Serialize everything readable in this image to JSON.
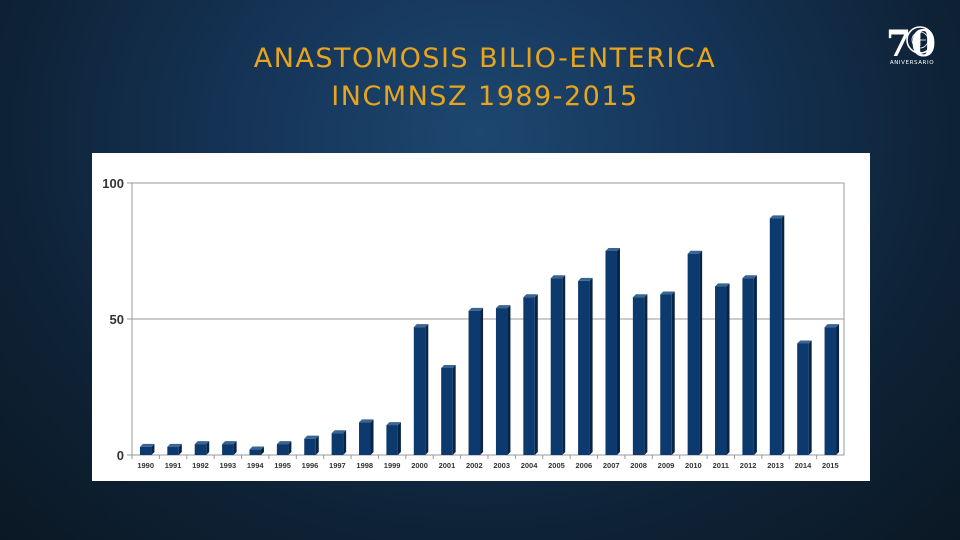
{
  "slide": {
    "title_line1": "ANASTOMOSIS BILIO-ENTERICA",
    "title_line2": "INCMNSZ 1989-2015",
    "title_color": "#e8a51c"
  },
  "logo": {
    "numeral": "70",
    "caption": "ANIVERSARIO",
    "icon": "anniversary-70-logo"
  },
  "colors": {
    "bar_face": "#0d3a6e",
    "bar_side": "#072447",
    "bar_top": "#3a6593",
    "gridline": "#9a9a9a"
  },
  "chart_data": {
    "type": "bar",
    "categories": [
      "1990",
      "1991",
      "1992",
      "1993",
      "1994",
      "1995",
      "1996",
      "1997",
      "1998",
      "1999",
      "2000",
      "2001",
      "2002",
      "2003",
      "2004",
      "2005",
      "2006",
      "2007",
      "2008",
      "2009",
      "2010",
      "2011",
      "2012",
      "2013",
      "2014",
      "2015"
    ],
    "values": [
      3,
      3,
      4,
      4,
      2,
      4,
      6,
      8,
      12,
      11,
      47,
      32,
      53,
      54,
      58,
      65,
      64,
      75,
      58,
      59,
      74,
      62,
      65,
      87,
      41,
      47
    ],
    "ylim": [
      0,
      100
    ],
    "yticks": [
      "0",
      "50",
      "100"
    ],
    "grid": true,
    "title": "",
    "xlabel": "",
    "ylabel": ""
  }
}
